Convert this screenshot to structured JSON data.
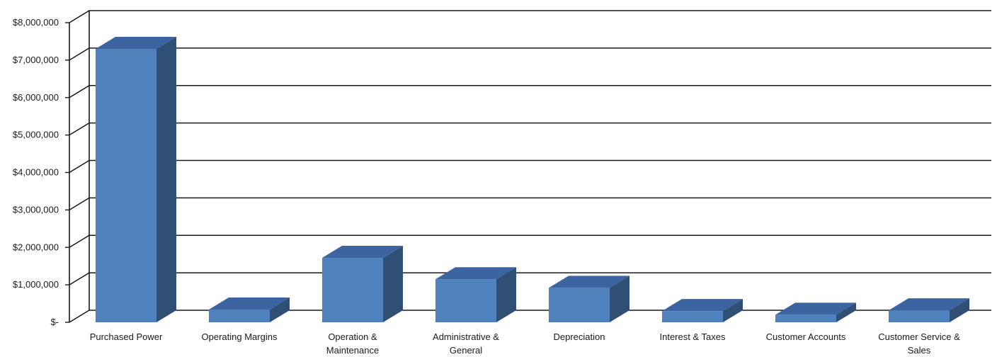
{
  "chart_data": {
    "type": "bar",
    "style": "3d-column",
    "categories": [
      [
        "Purchased Power"
      ],
      [
        "Operating Margins"
      ],
      [
        "Operation &",
        "Maintenance"
      ],
      [
        "Administrative &",
        "General"
      ],
      [
        "Depreciation"
      ],
      [
        "Interest & Taxes"
      ],
      [
        "Customer Accounts"
      ],
      [
        "Customer Service &",
        "Sales"
      ]
    ],
    "values": [
      7300000,
      340000,
      1720000,
      1150000,
      920000,
      300000,
      200000,
      320000
    ],
    "ylim": [
      0,
      8000000
    ],
    "yticks": [
      0,
      1000000,
      2000000,
      3000000,
      4000000,
      5000000,
      6000000,
      7000000,
      8000000
    ],
    "ytick_labels": [
      "$-",
      "$1,000,000",
      "$2,000,000",
      "$3,000,000",
      "$4,000,000",
      "$5,000,000",
      "$6,000,000",
      "$7,000,000",
      "$8,000,000"
    ],
    "grid": true,
    "colors": {
      "front": "#4f81bd",
      "side": "#2f4f74",
      "top": "#3b64a0",
      "grid": "#1a1a1a"
    }
  }
}
